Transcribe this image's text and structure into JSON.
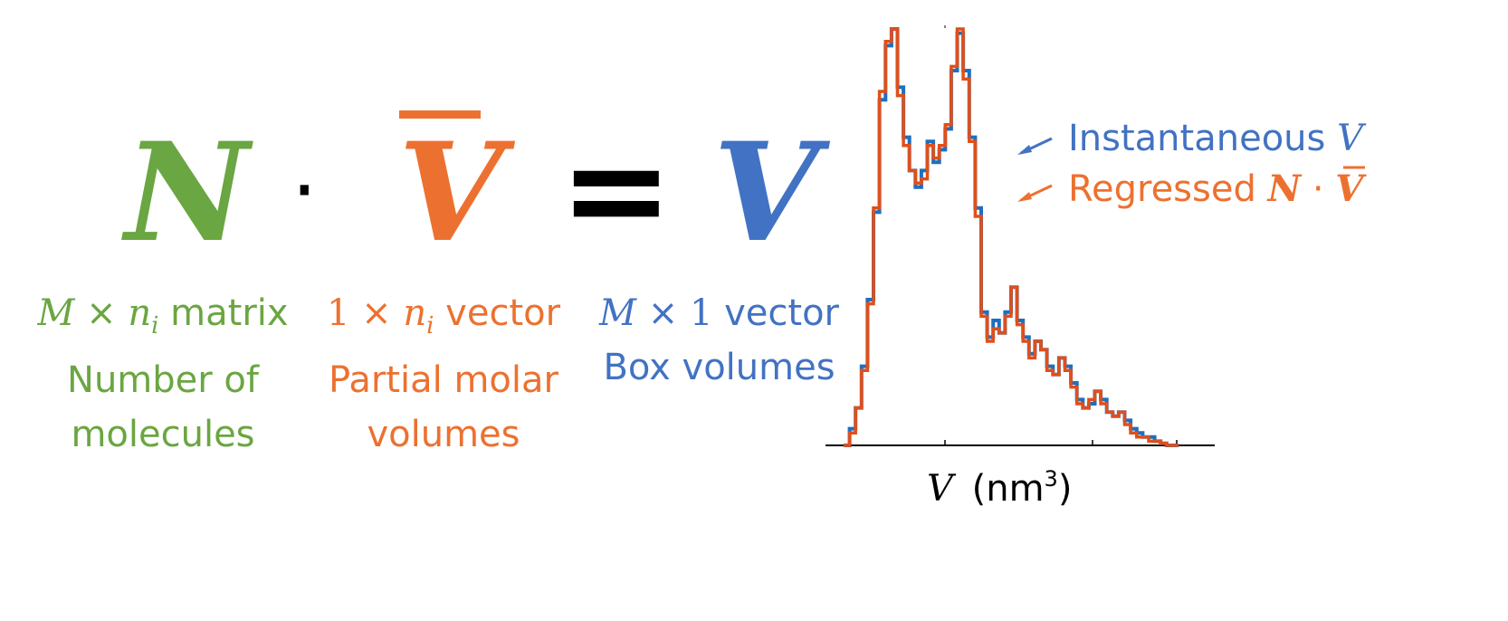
{
  "colors": {
    "green": "#6aa641",
    "orange": "#ec7130",
    "blue": "#4272c3",
    "black": "#000000",
    "series_instantaneous": "#1f6fbf",
    "series_regressed": "#e04f1a"
  },
  "equation": {
    "n_symbol": "N",
    "dot": "·",
    "vbar_symbol": "V",
    "equals": "=",
    "v_symbol": "V"
  },
  "descriptions": {
    "n": {
      "dims_m": "M",
      "dims_times": "×",
      "dims_n": "n",
      "dims_sub": "i",
      "dims_word": "matrix",
      "line2": "Number of",
      "line3": "molecules"
    },
    "vbar": {
      "dims_one": "1",
      "dims_times": "×",
      "dims_n": "n",
      "dims_sub": "i",
      "dims_word": "vector",
      "line2": "Partial molar",
      "line3": "volumes"
    },
    "v": {
      "dims_m": "M",
      "dims_times": "×",
      "dims_one": "1",
      "dims_word": "vector",
      "line2": "Box volumes"
    }
  },
  "chart_data": {
    "type": "histogram",
    "title": "",
    "xlabel_symbol": "V",
    "xlabel_unit": "(nm",
    "xlabel_exp": "3",
    "xlabel_close": ")",
    "ylabel": "",
    "grid": false,
    "legend_placement": "top-right",
    "y_tick_labels": false,
    "x_tick_labels": false,
    "x_ticks_count": 4,
    "bins": 56,
    "series": [
      {
        "name": "Instantaneous V",
        "label_text": "Instantaneous",
        "label_symbol": "V",
        "values": [
          0.0,
          0.04,
          0.09,
          0.19,
          0.35,
          0.56,
          0.83,
          0.96,
          1.0,
          0.86,
          0.74,
          0.66,
          0.62,
          0.66,
          0.73,
          0.68,
          0.71,
          0.76,
          0.9,
          0.99,
          0.9,
          0.74,
          0.57,
          0.32,
          0.26,
          0.3,
          0.27,
          0.32,
          0.38,
          0.3,
          0.26,
          0.22,
          0.25,
          0.23,
          0.19,
          0.17,
          0.21,
          0.19,
          0.15,
          0.11,
          0.09,
          0.1,
          0.13,
          0.11,
          0.08,
          0.07,
          0.08,
          0.06,
          0.04,
          0.03,
          0.02,
          0.02,
          0.01,
          0.005,
          0.0,
          0.0
        ]
      },
      {
        "name": "Regressed N · V̄",
        "label_text": "Regressed",
        "label_symbol_n": "N",
        "label_dot": "·",
        "label_symbol_v": "V",
        "values": [
          0.0,
          0.03,
          0.09,
          0.18,
          0.34,
          0.57,
          0.85,
          0.97,
          1.0,
          0.84,
          0.72,
          0.66,
          0.63,
          0.64,
          0.72,
          0.69,
          0.72,
          0.77,
          0.91,
          1.0,
          0.88,
          0.73,
          0.55,
          0.31,
          0.25,
          0.28,
          0.27,
          0.31,
          0.38,
          0.29,
          0.25,
          0.21,
          0.25,
          0.23,
          0.18,
          0.17,
          0.21,
          0.18,
          0.14,
          0.1,
          0.09,
          0.11,
          0.13,
          0.1,
          0.08,
          0.07,
          0.08,
          0.05,
          0.03,
          0.02,
          0.02,
          0.01,
          0.01,
          0.005,
          0.0,
          0.0
        ]
      }
    ]
  }
}
